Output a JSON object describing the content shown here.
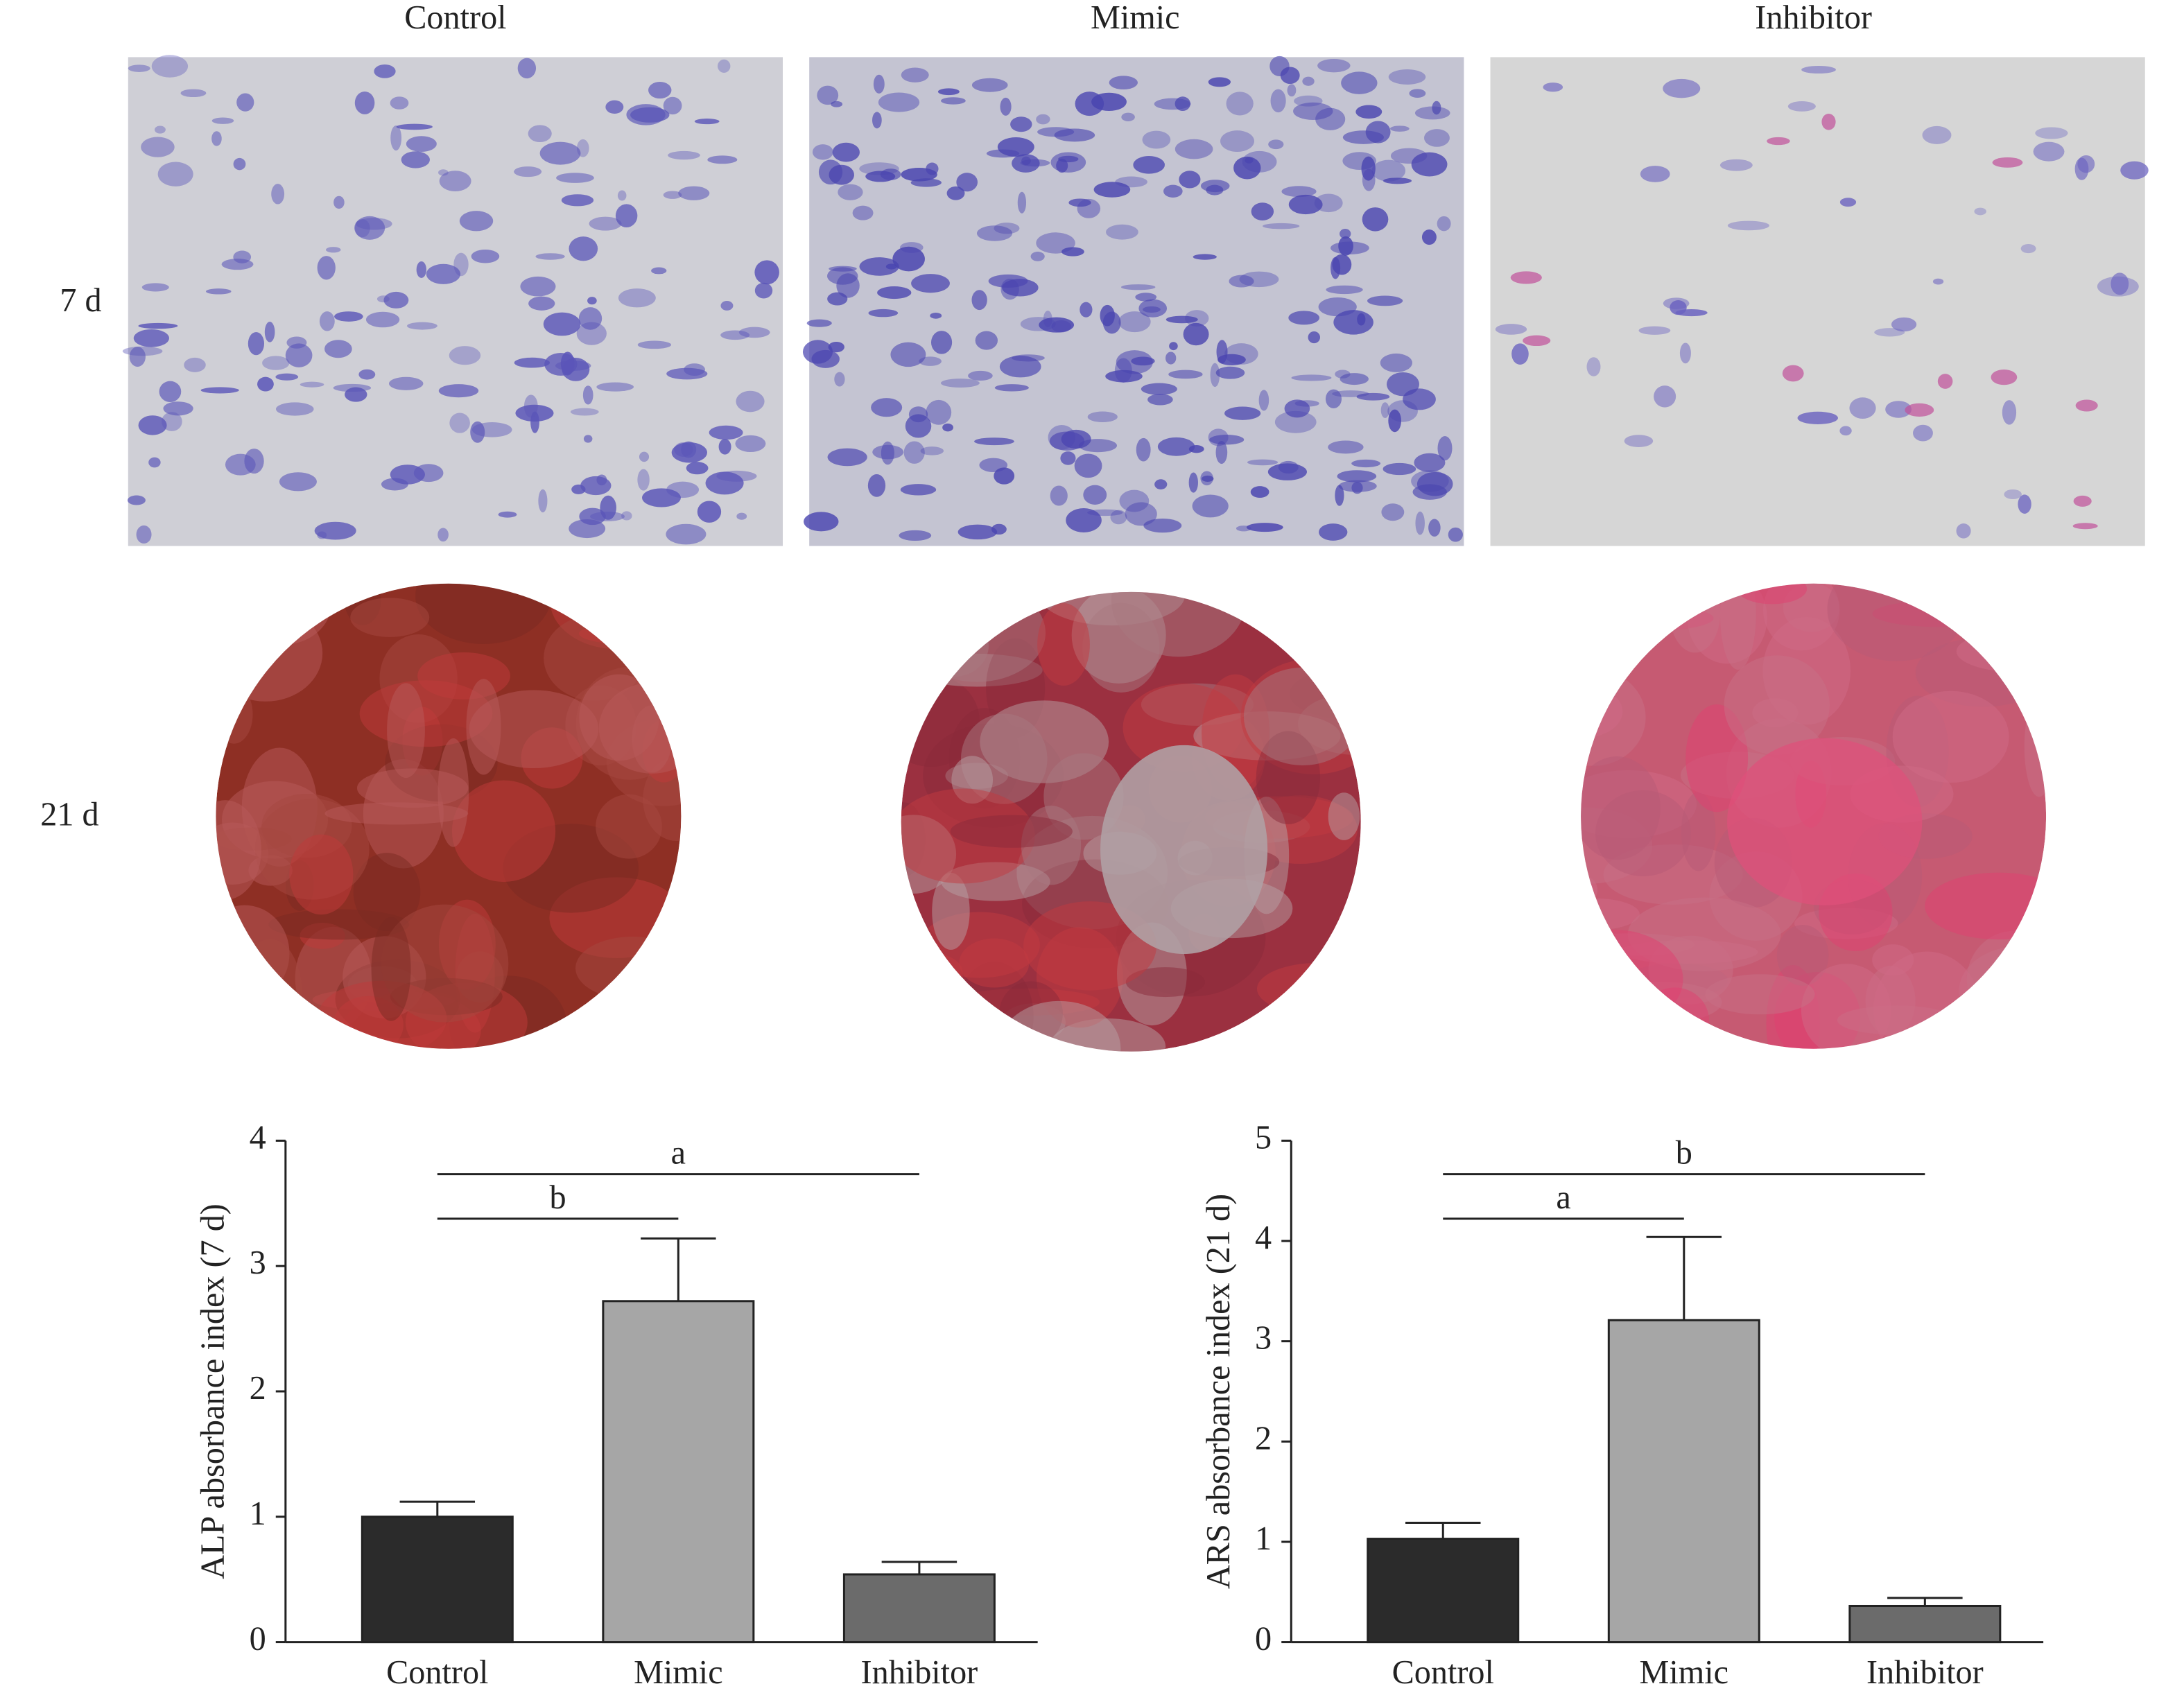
{
  "column_labels": [
    "Control",
    "Mimic",
    "Inhibitor"
  ],
  "row_labels": [
    "7 d",
    "21 d"
  ],
  "chart_data": [
    {
      "type": "bar",
      "y_label": "ALP absorbance index (7 d)",
      "categories": [
        "Control",
        "Mimic",
        "Inhibitor"
      ],
      "values": [
        1.0,
        2.72,
        0.54
      ],
      "errors": [
        0.12,
        0.5,
        0.1
      ],
      "colors": [
        "#2b2b2b",
        "#a6a6a6",
        "#6b6b6b"
      ],
      "ylim": [
        0,
        4
      ],
      "yticks": [
        0,
        1,
        2,
        3,
        4
      ],
      "annotations": [
        "a",
        "b"
      ]
    },
    {
      "type": "bar",
      "y_label": "ARS absorbance index (21 d)",
      "categories": [
        "Control",
        "Mimic",
        "Inhibitor"
      ],
      "values": [
        1.03,
        3.21,
        0.36
      ],
      "errors": [
        0.16,
        0.83,
        0.08
      ],
      "colors": [
        "#2b2b2b",
        "#a6a6a6",
        "#6b6b6b"
      ],
      "ylim": [
        0,
        5
      ],
      "yticks": [
        0,
        1,
        2,
        3,
        4,
        5
      ],
      "annotations": [
        "b",
        "a"
      ]
    }
  ]
}
